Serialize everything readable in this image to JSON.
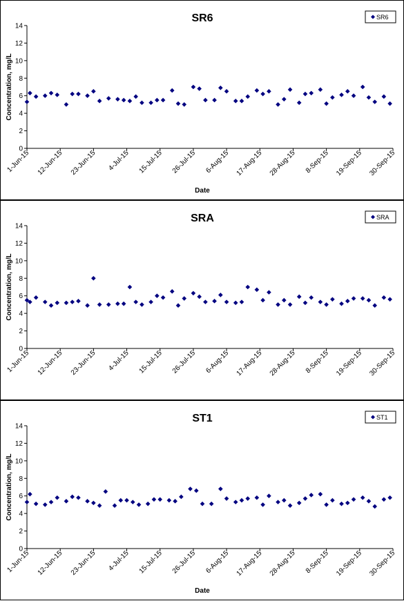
{
  "chart_data": [
    {
      "type": "scatter",
      "title": "SR6",
      "xlabel": "Date",
      "ylabel": "Concentration, mg/L",
      "ylim": [
        0,
        14
      ],
      "yticks": [
        "0",
        "2",
        "4",
        "6",
        "8",
        "10",
        "12",
        "14"
      ],
      "xlim": [
        "2015-06-01",
        "2015-09-30"
      ],
      "xticks": [
        {
          "date": "2015-06-01",
          "label": "1-Jun-15"
        },
        {
          "date": "2015-06-12",
          "label": "12-Jun-15"
        },
        {
          "date": "2015-06-23",
          "label": "23-Jun-15"
        },
        {
          "date": "2015-07-04",
          "label": "4-Jul-15"
        },
        {
          "date": "2015-07-15",
          "label": "15-Jul-15"
        },
        {
          "date": "2015-07-26",
          "label": "26-Jul-15"
        },
        {
          "date": "2015-08-06",
          "label": "6-Aug-15"
        },
        {
          "date": "2015-08-17",
          "label": "17-Aug-15"
        },
        {
          "date": "2015-08-28",
          "label": "28-Aug-15"
        },
        {
          "date": "2015-09-08",
          "label": "8-Sep-15"
        },
        {
          "date": "2015-09-19",
          "label": "19-Sep-15"
        },
        {
          "date": "2015-09-30",
          "label": "30-Sep-15"
        }
      ],
      "legend": "top-right",
      "grid": false,
      "series": [
        {
          "name": "SR6",
          "color": "#000080",
          "marker": "diamond",
          "points": [
            {
              "x": "2015-06-01",
              "y": 5.3
            },
            {
              "x": "2015-06-02",
              "y": 6.3
            },
            {
              "x": "2015-06-04",
              "y": 5.9
            },
            {
              "x": "2015-06-07",
              "y": 6.0
            },
            {
              "x": "2015-06-09",
              "y": 6.3
            },
            {
              "x": "2015-06-11",
              "y": 6.1
            },
            {
              "x": "2015-06-14",
              "y": 5.0
            },
            {
              "x": "2015-06-16",
              "y": 6.2
            },
            {
              "x": "2015-06-18",
              "y": 6.2
            },
            {
              "x": "2015-06-21",
              "y": 6.0
            },
            {
              "x": "2015-06-23",
              "y": 6.5
            },
            {
              "x": "2015-06-25",
              "y": 5.4
            },
            {
              "x": "2015-06-28",
              "y": 5.7
            },
            {
              "x": "2015-07-01",
              "y": 5.6
            },
            {
              "x": "2015-07-03",
              "y": 5.5
            },
            {
              "x": "2015-07-05",
              "y": 5.4
            },
            {
              "x": "2015-07-07",
              "y": 5.9
            },
            {
              "x": "2015-07-09",
              "y": 5.2
            },
            {
              "x": "2015-07-12",
              "y": 5.2
            },
            {
              "x": "2015-07-14",
              "y": 5.5
            },
            {
              "x": "2015-07-16",
              "y": 5.5
            },
            {
              "x": "2015-07-19",
              "y": 6.6
            },
            {
              "x": "2015-07-21",
              "y": 5.1
            },
            {
              "x": "2015-07-23",
              "y": 5.0
            },
            {
              "x": "2015-07-26",
              "y": 7.0
            },
            {
              "x": "2015-07-28",
              "y": 6.8
            },
            {
              "x": "2015-07-30",
              "y": 5.5
            },
            {
              "x": "2015-08-02",
              "y": 5.5
            },
            {
              "x": "2015-08-04",
              "y": 6.9
            },
            {
              "x": "2015-08-06",
              "y": 6.5
            },
            {
              "x": "2015-08-09",
              "y": 5.4
            },
            {
              "x": "2015-08-11",
              "y": 5.4
            },
            {
              "x": "2015-08-13",
              "y": 5.9
            },
            {
              "x": "2015-08-16",
              "y": 6.6
            },
            {
              "x": "2015-08-18",
              "y": 6.2
            },
            {
              "x": "2015-08-20",
              "y": 6.5
            },
            {
              "x": "2015-08-23",
              "y": 5.0
            },
            {
              "x": "2015-08-25",
              "y": 5.6
            },
            {
              "x": "2015-08-27",
              "y": 6.7
            },
            {
              "x": "2015-08-30",
              "y": 5.2
            },
            {
              "x": "2015-09-01",
              "y": 6.2
            },
            {
              "x": "2015-09-03",
              "y": 6.3
            },
            {
              "x": "2015-09-06",
              "y": 6.7
            },
            {
              "x": "2015-09-08",
              "y": 5.1
            },
            {
              "x": "2015-09-10",
              "y": 5.8
            },
            {
              "x": "2015-09-13",
              "y": 6.1
            },
            {
              "x": "2015-09-15",
              "y": 6.5
            },
            {
              "x": "2015-09-17",
              "y": 6.0
            },
            {
              "x": "2015-09-20",
              "y": 7.0
            },
            {
              "x": "2015-09-22",
              "y": 5.8
            },
            {
              "x": "2015-09-24",
              "y": 5.3
            },
            {
              "x": "2015-09-27",
              "y": 5.9
            },
            {
              "x": "2015-09-29",
              "y": 5.1
            }
          ]
        }
      ]
    },
    {
      "type": "scatter",
      "title": "SRA",
      "xlabel": "",
      "ylabel": "Concentration, mg/L",
      "ylim": [
        0,
        14
      ],
      "yticks": [
        "0",
        "2",
        "4",
        "6",
        "8",
        "10",
        "12",
        "14"
      ],
      "xlim": [
        "2015-06-01",
        "2015-09-30"
      ],
      "xticks": [
        {
          "date": "2015-06-01",
          "label": "1-Jun-15"
        },
        {
          "date": "2015-06-12",
          "label": "12-Jun-15"
        },
        {
          "date": "2015-06-23",
          "label": "23-Jun-15"
        },
        {
          "date": "2015-07-04",
          "label": "4-Jul-15"
        },
        {
          "date": "2015-07-15",
          "label": "15-Jul-15"
        },
        {
          "date": "2015-07-26",
          "label": "26-Jul-15"
        },
        {
          "date": "2015-08-06",
          "label": "6-Aug-15"
        },
        {
          "date": "2015-08-17",
          "label": "17-Aug-15"
        },
        {
          "date": "2015-08-28",
          "label": "28-Aug-15"
        },
        {
          "date": "2015-09-08",
          "label": "8-Sep-15"
        },
        {
          "date": "2015-09-19",
          "label": "19-Sep-15"
        },
        {
          "date": "2015-09-30",
          "label": "30-Sep-15"
        }
      ],
      "legend": "top-right",
      "grid": false,
      "series": [
        {
          "name": "SRA",
          "color": "#000080",
          "marker": "diamond",
          "points": [
            {
              "x": "2015-06-01",
              "y": 5.5
            },
            {
              "x": "2015-06-02",
              "y": 5.3
            },
            {
              "x": "2015-06-04",
              "y": 5.8
            },
            {
              "x": "2015-06-07",
              "y": 5.3
            },
            {
              "x": "2015-06-09",
              "y": 4.9
            },
            {
              "x": "2015-06-11",
              "y": 5.2
            },
            {
              "x": "2015-06-14",
              "y": 5.2
            },
            {
              "x": "2015-06-16",
              "y": 5.3
            },
            {
              "x": "2015-06-18",
              "y": 5.4
            },
            {
              "x": "2015-06-21",
              "y": 4.9
            },
            {
              "x": "2015-06-23",
              "y": 8.0
            },
            {
              "x": "2015-06-25",
              "y": 5.0
            },
            {
              "x": "2015-06-28",
              "y": 5.0
            },
            {
              "x": "2015-07-01",
              "y": 5.1
            },
            {
              "x": "2015-07-03",
              "y": 5.1
            },
            {
              "x": "2015-07-05",
              "y": 7.0
            },
            {
              "x": "2015-07-07",
              "y": 5.3
            },
            {
              "x": "2015-07-09",
              "y": 5.0
            },
            {
              "x": "2015-07-12",
              "y": 5.3
            },
            {
              "x": "2015-07-14",
              "y": 6.0
            },
            {
              "x": "2015-07-16",
              "y": 5.8
            },
            {
              "x": "2015-07-19",
              "y": 6.5
            },
            {
              "x": "2015-07-21",
              "y": 4.9
            },
            {
              "x": "2015-07-23",
              "y": 5.7
            },
            {
              "x": "2015-07-26",
              "y": 6.3
            },
            {
              "x": "2015-07-28",
              "y": 5.9
            },
            {
              "x": "2015-07-30",
              "y": 5.3
            },
            {
              "x": "2015-08-02",
              "y": 5.4
            },
            {
              "x": "2015-08-04",
              "y": 6.1
            },
            {
              "x": "2015-08-06",
              "y": 5.3
            },
            {
              "x": "2015-08-09",
              "y": 5.2
            },
            {
              "x": "2015-08-11",
              "y": 5.3
            },
            {
              "x": "2015-08-13",
              "y": 7.0
            },
            {
              "x": "2015-08-16",
              "y": 6.7
            },
            {
              "x": "2015-08-18",
              "y": 5.5
            },
            {
              "x": "2015-08-20",
              "y": 6.4
            },
            {
              "x": "2015-08-23",
              "y": 5.0
            },
            {
              "x": "2015-08-25",
              "y": 5.5
            },
            {
              "x": "2015-08-27",
              "y": 5.0
            },
            {
              "x": "2015-08-30",
              "y": 5.9
            },
            {
              "x": "2015-09-01",
              "y": 5.2
            },
            {
              "x": "2015-09-03",
              "y": 5.8
            },
            {
              "x": "2015-09-06",
              "y": 5.3
            },
            {
              "x": "2015-09-08",
              "y": 5.0
            },
            {
              "x": "2015-09-10",
              "y": 5.6
            },
            {
              "x": "2015-09-13",
              "y": 5.1
            },
            {
              "x": "2015-09-15",
              "y": 5.4
            },
            {
              "x": "2015-09-17",
              "y": 5.7
            },
            {
              "x": "2015-09-20",
              "y": 5.7
            },
            {
              "x": "2015-09-22",
              "y": 5.5
            },
            {
              "x": "2015-09-24",
              "y": 4.9
            },
            {
              "x": "2015-09-27",
              "y": 5.8
            },
            {
              "x": "2015-09-29",
              "y": 5.6
            }
          ]
        }
      ]
    },
    {
      "type": "scatter",
      "title": "ST1",
      "xlabel": "Date",
      "ylabel": "Concentration, mg/L",
      "ylim": [
        0,
        14
      ],
      "yticks": [
        "0",
        "2",
        "4",
        "6",
        "8",
        "10",
        "12",
        "14"
      ],
      "xlim": [
        "2015-06-01",
        "2015-09-30"
      ],
      "xticks": [
        {
          "date": "2015-06-01",
          "label": "1-Jun-15"
        },
        {
          "date": "2015-06-12",
          "label": "12-Jun-15"
        },
        {
          "date": "2015-06-23",
          "label": "23-Jun-15"
        },
        {
          "date": "2015-07-04",
          "label": "4-Jul-15"
        },
        {
          "date": "2015-07-15",
          "label": "15-Jul-15"
        },
        {
          "date": "2015-07-26",
          "label": "26-Jul-15"
        },
        {
          "date": "2015-08-06",
          "label": "6-Aug-15"
        },
        {
          "date": "2015-08-17",
          "label": "17-Aug-15"
        },
        {
          "date": "2015-08-28",
          "label": "28-Aug-15"
        },
        {
          "date": "2015-09-08",
          "label": "8-Sep-15"
        },
        {
          "date": "2015-09-19",
          "label": "19-Sep-15"
        },
        {
          "date": "2015-09-30",
          "label": "30-Sep-15"
        }
      ],
      "legend": "top-right",
      "grid": false,
      "series": [
        {
          "name": "ST1",
          "color": "#000080",
          "marker": "diamond",
          "points": [
            {
              "x": "2015-06-01",
              "y": 5.3
            },
            {
              "x": "2015-06-02",
              "y": 6.2
            },
            {
              "x": "2015-06-04",
              "y": 5.1
            },
            {
              "x": "2015-06-07",
              "y": 5.0
            },
            {
              "x": "2015-06-09",
              "y": 5.3
            },
            {
              "x": "2015-06-11",
              "y": 5.8
            },
            {
              "x": "2015-06-14",
              "y": 5.4
            },
            {
              "x": "2015-06-16",
              "y": 5.9
            },
            {
              "x": "2015-06-18",
              "y": 5.8
            },
            {
              "x": "2015-06-21",
              "y": 5.4
            },
            {
              "x": "2015-06-23",
              "y": 5.2
            },
            {
              "x": "2015-06-25",
              "y": 4.9
            },
            {
              "x": "2015-06-27",
              "y": 6.5
            },
            {
              "x": "2015-06-30",
              "y": 4.9
            },
            {
              "x": "2015-07-02",
              "y": 5.5
            },
            {
              "x": "2015-07-04",
              "y": 5.5
            },
            {
              "x": "2015-07-06",
              "y": 5.3
            },
            {
              "x": "2015-07-08",
              "y": 5.0
            },
            {
              "x": "2015-07-11",
              "y": 5.1
            },
            {
              "x": "2015-07-13",
              "y": 5.6
            },
            {
              "x": "2015-07-15",
              "y": 5.6
            },
            {
              "x": "2015-07-18",
              "y": 5.5
            },
            {
              "x": "2015-07-20",
              "y": 5.4
            },
            {
              "x": "2015-07-22",
              "y": 5.9
            },
            {
              "x": "2015-07-25",
              "y": 6.8
            },
            {
              "x": "2015-07-27",
              "y": 6.6
            },
            {
              "x": "2015-07-29",
              "y": 5.1
            },
            {
              "x": "2015-08-01",
              "y": 5.1
            },
            {
              "x": "2015-08-04",
              "y": 6.8
            },
            {
              "x": "2015-08-06",
              "y": 5.7
            },
            {
              "x": "2015-08-09",
              "y": 5.3
            },
            {
              "x": "2015-08-11",
              "y": 5.5
            },
            {
              "x": "2015-08-13",
              "y": 5.7
            },
            {
              "x": "2015-08-16",
              "y": 5.8
            },
            {
              "x": "2015-08-18",
              "y": 5.0
            },
            {
              "x": "2015-08-20",
              "y": 6.0
            },
            {
              "x": "2015-08-23",
              "y": 5.3
            },
            {
              "x": "2015-08-25",
              "y": 5.5
            },
            {
              "x": "2015-08-27",
              "y": 4.9
            },
            {
              "x": "2015-08-30",
              "y": 5.2
            },
            {
              "x": "2015-09-01",
              "y": 5.7
            },
            {
              "x": "2015-09-03",
              "y": 6.1
            },
            {
              "x": "2015-09-06",
              "y": 6.2
            },
            {
              "x": "2015-09-08",
              "y": 5.0
            },
            {
              "x": "2015-09-10",
              "y": 5.5
            },
            {
              "x": "2015-09-13",
              "y": 5.1
            },
            {
              "x": "2015-09-15",
              "y": 5.2
            },
            {
              "x": "2015-09-17",
              "y": 5.6
            },
            {
              "x": "2015-09-20",
              "y": 5.8
            },
            {
              "x": "2015-09-22",
              "y": 5.4
            },
            {
              "x": "2015-09-24",
              "y": 4.8
            },
            {
              "x": "2015-09-27",
              "y": 5.6
            },
            {
              "x": "2015-09-29",
              "y": 5.8
            }
          ]
        }
      ]
    }
  ]
}
